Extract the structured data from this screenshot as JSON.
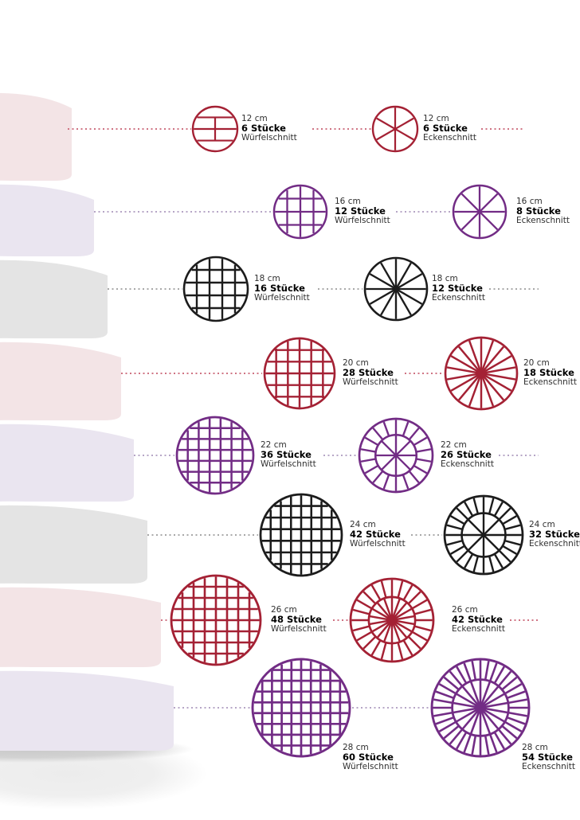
{
  "page": {
    "background_color": "#ffffff"
  },
  "palette": {
    "red": "#a42134",
    "purple": "#722c85",
    "black": "#1c1c1c"
  },
  "cake": {
    "shadow_color": "#d2d2d2",
    "tiers": [
      {
        "row": 1,
        "tint": "#f3e4e6"
      },
      {
        "row": 2,
        "tint": "#eae5f0"
      },
      {
        "row": 3,
        "tint": "#e4e4e4"
      },
      {
        "row": 4,
        "tint": "#f3e4e6"
      },
      {
        "row": 5,
        "tint": "#eae5f0"
      },
      {
        "row": 6,
        "tint": "#e4e4e4"
      },
      {
        "row": 7,
        "tint": "#f3e4e6"
      },
      {
        "row": 8,
        "tint": "#eae5f0"
      }
    ]
  },
  "rows": [
    {
      "size_label": "12 cm",
      "color": "#a42134",
      "dot_color": "#cf7383",
      "wuerfelschnitt": {
        "pieces": 6,
        "pieces_label": "6 Stücke",
        "method_label": "Würfelschnitt",
        "cut_pattern": {
          "type": "grid-special-6"
        }
      },
      "eckenschnitt": {
        "pieces": 6,
        "pieces_label": "6 Stücke",
        "method_label": "Eckenschnitt",
        "cut_pattern": {
          "type": "spokes",
          "diameters": 3
        }
      }
    },
    {
      "size_label": "16 cm",
      "color": "#722c85",
      "dot_color": "#b6a5c6",
      "wuerfelschnitt": {
        "pieces": 12,
        "pieces_label": "12 Stücke",
        "method_label": "Würfelschnitt",
        "cut_pattern": {
          "type": "grid",
          "v_lines": 3,
          "h_lines": 3
        }
      },
      "eckenschnitt": {
        "pieces": 8,
        "pieces_label": "8 Stücke",
        "method_label": "Eckenschnitt",
        "cut_pattern": {
          "type": "spokes",
          "diameters": 4
        }
      }
    },
    {
      "size_label": "18 cm",
      "color": "#1c1c1c",
      "dot_color": "#a8a8a8",
      "wuerfelschnitt": {
        "pieces": 16,
        "pieces_label": "16 Stücke",
        "method_label": "Würfelschnitt",
        "cut_pattern": {
          "type": "grid",
          "v_lines": 4,
          "h_lines": 4
        }
      },
      "eckenschnitt": {
        "pieces": 12,
        "pieces_label": "12 Stücke",
        "method_label": "Eckenschnitt",
        "cut_pattern": {
          "type": "spokes",
          "diameters": 6
        }
      }
    },
    {
      "size_label": "20 cm",
      "color": "#a42134",
      "dot_color": "#cf7383",
      "wuerfelschnitt": {
        "pieces": 28,
        "pieces_label": "28 Stücke",
        "method_label": "Würfelschnitt",
        "cut_pattern": {
          "type": "grid",
          "v_lines": 5,
          "h_lines": 5
        }
      },
      "eckenschnitt": {
        "pieces": 18,
        "pieces_label": "18 Stücke",
        "method_label": "Eckenschnitt",
        "cut_pattern": {
          "type": "spokes",
          "diameters": 9
        }
      }
    },
    {
      "size_label": "22 cm",
      "color": "#722c85",
      "dot_color": "#b6a5c6",
      "wuerfelschnitt": {
        "pieces": 36,
        "pieces_label": "36 Stücke",
        "method_label": "Würfelschnitt",
        "cut_pattern": {
          "type": "grid",
          "v_lines": 6,
          "h_lines": 6
        }
      },
      "eckenschnitt": {
        "pieces": 26,
        "pieces_label": "26 Stücke",
        "method_label": "Eckenschnitt",
        "cut_pattern": {
          "type": "wheel",
          "inner_diameters": 4,
          "ring_segments": 18,
          "inner_ratio": 0.56
        }
      }
    },
    {
      "size_label": "24 cm",
      "color": "#1c1c1c",
      "dot_color": "#a8a8a8",
      "wuerfelschnitt": {
        "pieces": 42,
        "pieces_label": "42 Stücke",
        "method_label": "Würfelschnitt",
        "cut_pattern": {
          "type": "grid",
          "v_lines": 7,
          "h_lines": 6
        }
      },
      "eckenschnitt": {
        "pieces": 32,
        "pieces_label": "32 Stücke",
        "method_label": "Eckenschnitt",
        "cut_pattern": {
          "type": "wheel",
          "inner_diameters": 4,
          "ring_segments": 24,
          "inner_ratio": 0.56
        }
      }
    },
    {
      "size_label": "26 cm",
      "color": "#a42134",
      "dot_color": "#cf7383",
      "wuerfelschnitt": {
        "pieces": 48,
        "pieces_label": "48 Stücke",
        "method_label": "Würfelschnitt",
        "cut_pattern": {
          "type": "grid",
          "v_lines": 7,
          "h_lines": 7
        }
      },
      "eckenschnitt": {
        "pieces": 42,
        "pieces_label": "42 Stücke",
        "method_label": "Eckenschnitt",
        "cut_pattern": {
          "type": "wheel",
          "inner_diameters": 9,
          "ring_segments": 24,
          "inner_ratio": 0.56
        }
      }
    },
    {
      "size_label": "28 cm",
      "color": "#722c85",
      "dot_color": "#b6a5c6",
      "wuerfelschnitt": {
        "pieces": 60,
        "pieces_label": "60 Stücke",
        "method_label": "Würfelschnitt",
        "cut_pattern": {
          "type": "grid",
          "v_lines": 9,
          "h_lines": 8
        }
      },
      "eckenschnitt": {
        "pieces": 54,
        "pieces_label": "54 Stücke",
        "method_label": "Eckenschnitt",
        "cut_pattern": {
          "type": "wheel",
          "inner_diameters": 9,
          "ring_segments": 36,
          "inner_ratio": 0.58
        }
      }
    }
  ]
}
